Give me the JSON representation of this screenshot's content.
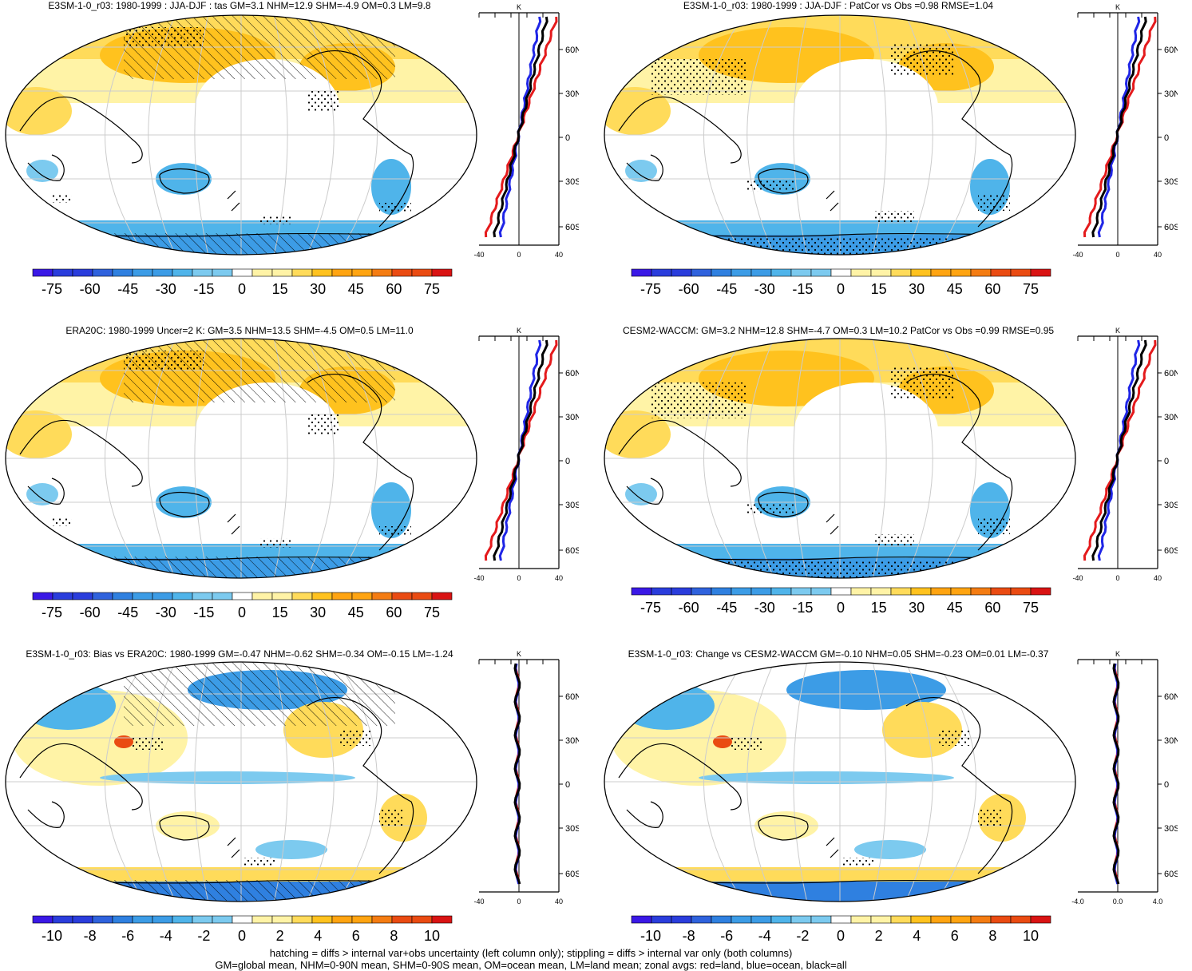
{
  "panels": [
    {
      "id": "p1",
      "title": "E3SM-1-0_r03: 1980-1999 : JJA-DJF : tas GM=3.1 NHM=12.9 SHM=-4.9 OM=0.3 LM=9.8",
      "kind": "abs",
      "hatch": true,
      "stipple": "moderate",
      "colorbar_labels": [
        "-75",
        "-60",
        "-45",
        "-30",
        "-15",
        "0",
        "15",
        "30",
        "45",
        "60",
        "75"
      ],
      "zonal_unit": "K",
      "zonal_xticks": [
        "-40",
        "0",
        "40"
      ],
      "zonal_lat_labels": [
        "60N",
        "30N",
        "0",
        "30S",
        "60S"
      ]
    },
    {
      "id": "p2",
      "title": "E3SM-1-0_r03: 1980-1999 : JJA-DJF : PatCor vs Obs =0.98 RMSE=1.04",
      "kind": "abs",
      "hatch": false,
      "stipple": "dense",
      "colorbar_labels": [
        "-75",
        "-60",
        "-45",
        "-30",
        "-15",
        "0",
        "15",
        "30",
        "45",
        "60",
        "75"
      ],
      "zonal_unit": "K",
      "zonal_xticks": [
        "-40",
        "0",
        "40"
      ],
      "zonal_lat_labels": [
        "60N",
        "30N",
        "0",
        "30S",
        "60S"
      ]
    },
    {
      "id": "p3",
      "title": "ERA20C: 1980-1999 Uncer=2 K: GM=3.5 NHM=13.5 SHM=-4.5 OM=0.5 LM=11.0",
      "kind": "abs",
      "hatch": true,
      "stipple": "moderate",
      "colorbar_labels": [
        "-75",
        "-60",
        "-45",
        "-30",
        "-15",
        "0",
        "15",
        "30",
        "45",
        "60",
        "75"
      ],
      "zonal_unit": "K",
      "zonal_xticks": [
        "-40",
        "0",
        "40"
      ],
      "zonal_lat_labels": [
        "60N",
        "30N",
        "0",
        "30S",
        "60S"
      ]
    },
    {
      "id": "p4",
      "title": "CESM2-WACCM: GM=3.2 NHM=12.8 SHM=-4.7 OM=0.3 LM=10.2 PatCor vs Obs =0.99 RMSE=0.95",
      "kind": "abs",
      "hatch": false,
      "stipple": "dense",
      "colorbar_labels": [
        "-75",
        "-60",
        "-45",
        "-30",
        "-15",
        "0",
        "15",
        "30",
        "45",
        "60",
        "75"
      ],
      "zonal_unit": "K",
      "zonal_xticks": [
        "-40",
        "0",
        "40"
      ],
      "zonal_lat_labels": [
        "60N",
        "30N",
        "0",
        "30S",
        "60S"
      ]
    },
    {
      "id": "p5",
      "title": "E3SM-1-0_r03: Bias vs ERA20C: 1980-1999 GM=-0.47 NHM=-0.62 SHM=-0.34 OM=-0.15 LM=-1.24",
      "kind": "diff",
      "hatch": true,
      "stipple": "sparse",
      "colorbar_labels": [
        "-10",
        "-8",
        "-6",
        "-4",
        "-2",
        "0",
        "2",
        "4",
        "6",
        "8",
        "10"
      ],
      "zonal_unit": "K",
      "zonal_xticks": [
        "-40",
        "0",
        "40"
      ],
      "zonal_lat_labels": [
        "60N",
        "30N",
        "0",
        "30S",
        "60S"
      ]
    },
    {
      "id": "p6",
      "title": "E3SM-1-0_r03: Change vs CESM2-WACCM GM=-0.10 NHM=0.05 SHM=-0.23 OM=0.01 LM=-0.37",
      "kind": "diff",
      "hatch": false,
      "stipple": "sparse",
      "colorbar_labels": [
        "-10",
        "-8",
        "-6",
        "-4",
        "-2",
        "0",
        "2",
        "4",
        "6",
        "8",
        "10"
      ],
      "zonal_unit": "K",
      "zonal_xticks": [
        "-4.0",
        "0.0",
        "4.0"
      ],
      "zonal_lat_labels": [
        "60N",
        "30N",
        "0",
        "30S",
        "60S"
      ]
    }
  ],
  "colors": {
    "scale": [
      "#3a18e6",
      "#2a3ddc",
      "#2f62dd",
      "#2f80e0",
      "#3c9ce6",
      "#4fb4ea",
      "#7ccaef",
      "#ffffff",
      "#fff3a6",
      "#ffdb5a",
      "#ffc21e",
      "#ffa411",
      "#f47c12",
      "#ea4b12",
      "#d91313"
    ],
    "land_line": "#e41a1c",
    "ocean_line": "#1f25e6",
    "all_line": "#000000"
  },
  "footer": {
    "line1": "hatching = diffs > internal var+obs uncertainty (left column only); stippling = diffs > internal var only (both columns)",
    "line2": "GM=global mean, NHM=0-90N mean, SHM=0-90S mean, OM=ocean mean, LM=land mean; zonal avgs: red=land, blue=ocean, black=all"
  }
}
